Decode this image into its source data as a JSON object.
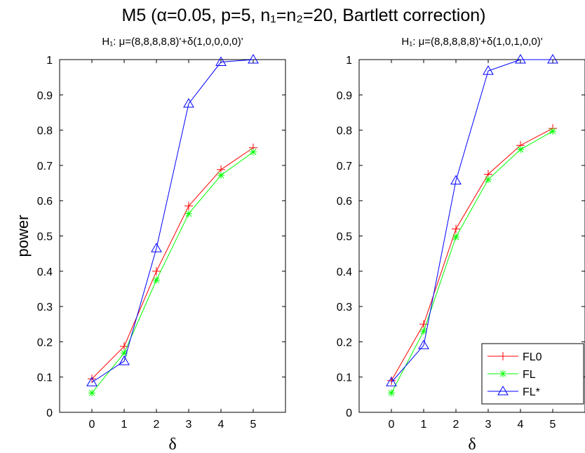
{
  "figure": {
    "title": "M5 (α=0.05, p=5, n₁=n₂=20, Bartlett correction)"
  },
  "chart_data": [
    {
      "type": "line",
      "title": "H₁: μ=(8,8,8,8,8)'+δ(1,0,0,0,0)'",
      "xlabel": "δ",
      "ylabel": "power",
      "xlim": [
        -1,
        6
      ],
      "ylim": [
        0,
        1
      ],
      "xticks": [
        "0",
        "1",
        "2",
        "3",
        "4",
        "5"
      ],
      "yticks": [
        "0",
        "0.1",
        "0.2",
        "0.3",
        "0.4",
        "0.5",
        "0.6",
        "0.7",
        "0.8",
        "0.9",
        "1"
      ],
      "x": [
        0,
        1,
        2,
        3,
        4,
        5
      ],
      "series": [
        {
          "name": "FL0",
          "color": "#ff0000",
          "marker": "plus",
          "values": [
            0.095,
            0.187,
            0.4,
            0.585,
            0.688,
            0.75
          ]
        },
        {
          "name": "FL",
          "color": "#00ff00",
          "marker": "asterisk",
          "values": [
            0.055,
            0.168,
            0.375,
            0.563,
            0.672,
            0.738
          ]
        },
        {
          "name": "FL*",
          "color": "#0000ff",
          "marker": "triangle",
          "values": [
            0.085,
            0.145,
            0.465,
            0.875,
            0.993,
            1.0
          ]
        }
      ],
      "legend": false
    },
    {
      "type": "line",
      "title": "H₁: μ=(8,8,8,8,8)'+δ(1,0,1,0,0)'",
      "xlabel": "δ",
      "ylabel": "",
      "xlim": [
        -1,
        6
      ],
      "ylim": [
        0,
        1
      ],
      "xticks": [
        "0",
        "1",
        "2",
        "3",
        "4",
        "5"
      ],
      "yticks": [
        "0",
        "0.1",
        "0.2",
        "0.3",
        "0.4",
        "0.5",
        "0.6",
        "0.7",
        "0.8",
        "0.9",
        "1"
      ],
      "x": [
        0,
        1,
        2,
        3,
        4,
        5
      ],
      "series": [
        {
          "name": "FL0",
          "color": "#ff0000",
          "marker": "plus",
          "values": [
            0.09,
            0.25,
            0.52,
            0.675,
            0.757,
            0.805
          ]
        },
        {
          "name": "FL",
          "color": "#00ff00",
          "marker": "asterisk",
          "values": [
            0.055,
            0.23,
            0.497,
            0.66,
            0.745,
            0.797
          ]
        },
        {
          "name": "FL*",
          "color": "#0000ff",
          "marker": "triangle",
          "values": [
            0.085,
            0.19,
            0.657,
            0.968,
            1.0,
            1.0
          ]
        }
      ],
      "legend": true,
      "legend_position": "bottom-right"
    }
  ]
}
